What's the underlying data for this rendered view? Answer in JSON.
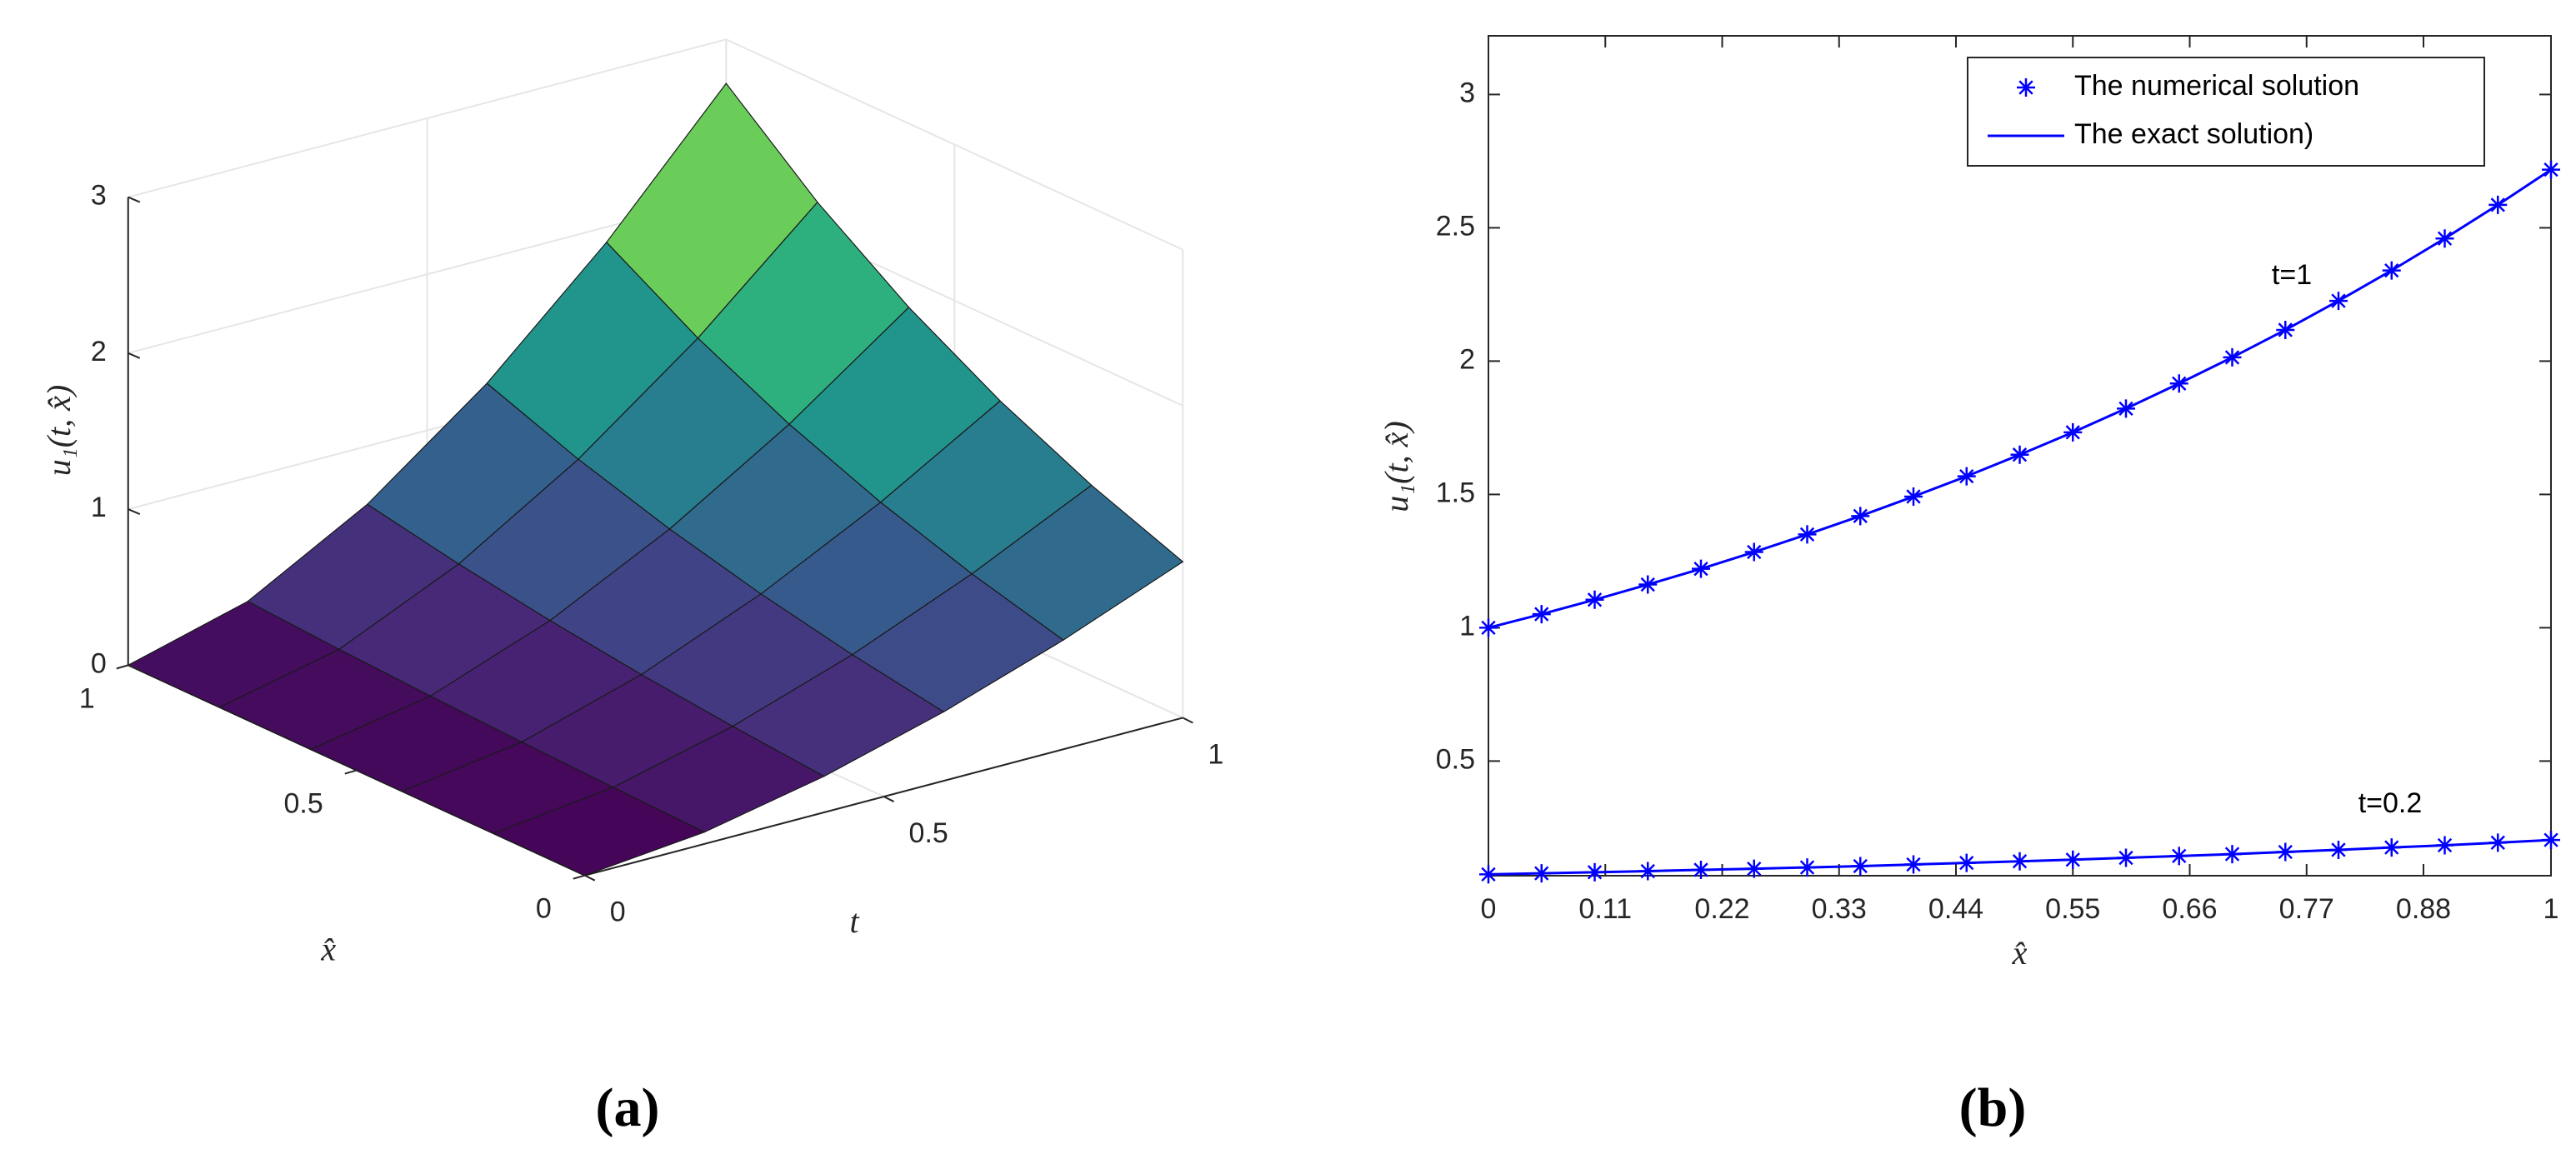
{
  "chart_data": [
    {
      "type": "surface",
      "panel_label": "(a)",
      "xlabel": "t",
      "ylabel": "x̂",
      "zlabel": "u₁(t, x̂)",
      "t": [
        0,
        0.2,
        0.4,
        0.6,
        0.8,
        1
      ],
      "x": [
        0,
        0.2,
        0.4,
        0.6,
        0.8,
        1
      ],
      "z": [
        [
          0,
          0,
          0,
          0,
          0,
          0
        ],
        [
          0.076,
          0.093,
          0.114,
          0.139,
          0.169,
          0.207
        ],
        [
          0.231,
          0.282,
          0.344,
          0.421,
          0.514,
          0.627
        ],
        [
          0.442,
          0.539,
          0.659,
          0.805,
          0.983,
          1.2
        ],
        [
          0.7,
          0.855,
          1.044,
          1.275,
          1.557,
          1.902
        ],
        [
          1,
          1.221,
          1.492,
          1.822,
          2.226,
          2.718
        ]
      ],
      "colormap": "viridis",
      "tlim": [
        0,
        1
      ],
      "tticks": [
        0,
        0.5,
        1
      ],
      "xlim": [
        0,
        1
      ],
      "xticks": [
        0,
        0.5,
        1
      ],
      "zlim": [
        0,
        3
      ],
      "zticks": [
        0,
        1,
        2,
        3
      ]
    },
    {
      "type": "line",
      "panel_label": "(b)",
      "xlabel": "x̂",
      "ylabel": "u₁(t, x̂)",
      "x": [
        0,
        0.05,
        0.1,
        0.15,
        0.2,
        0.25,
        0.3,
        0.35,
        0.4,
        0.45,
        0.5,
        0.55,
        0.6,
        0.65,
        0.7,
        0.75,
        0.8,
        0.85,
        0.9,
        0.95,
        1
      ],
      "series": [
        {
          "name": "The numerical solution",
          "color": "#0000ff",
          "marker": "*"
        },
        {
          "name": "The exact solution)",
          "color": "#0000ff",
          "marker": null
        }
      ],
      "curves": [
        {
          "label": "t=1",
          "numerical": [
            1,
            1.051,
            1.105,
            1.162,
            1.221,
            1.284,
            1.35,
            1.419,
            1.492,
            1.568,
            1.649,
            1.733,
            1.822,
            1.916,
            2.014,
            2.117,
            2.226,
            2.34,
            2.46,
            2.586,
            2.718
          ],
          "exact": [
            1,
            1.051,
            1.105,
            1.162,
            1.221,
            1.284,
            1.35,
            1.419,
            1.492,
            1.568,
            1.649,
            1.733,
            1.822,
            1.916,
            2.014,
            2.117,
            2.226,
            2.34,
            2.46,
            2.586,
            2.718
          ]
        },
        {
          "label": "t=0.2",
          "numerical": [
            0.075,
            0.079,
            0.083,
            0.087,
            0.092,
            0.096,
            0.101,
            0.106,
            0.112,
            0.118,
            0.124,
            0.13,
            0.137,
            0.144,
            0.151,
            0.159,
            0.167,
            0.176,
            0.184,
            0.194,
            0.204
          ],
          "exact": [
            0.075,
            0.079,
            0.083,
            0.087,
            0.092,
            0.096,
            0.101,
            0.106,
            0.112,
            0.118,
            0.124,
            0.13,
            0.137,
            0.144,
            0.151,
            0.159,
            0.167,
            0.176,
            0.184,
            0.194,
            0.204
          ]
        }
      ],
      "xlim": [
        0,
        1
      ],
      "xticks": [
        0,
        0.11,
        0.22,
        0.33,
        0.44,
        0.55,
        0.66,
        0.77,
        0.88,
        1
      ],
      "ylim": [
        0.07,
        3.22
      ],
      "yticks": [
        0.5,
        1,
        1.5,
        2,
        2.5,
        3
      ],
      "legend": "upper right"
    }
  ]
}
